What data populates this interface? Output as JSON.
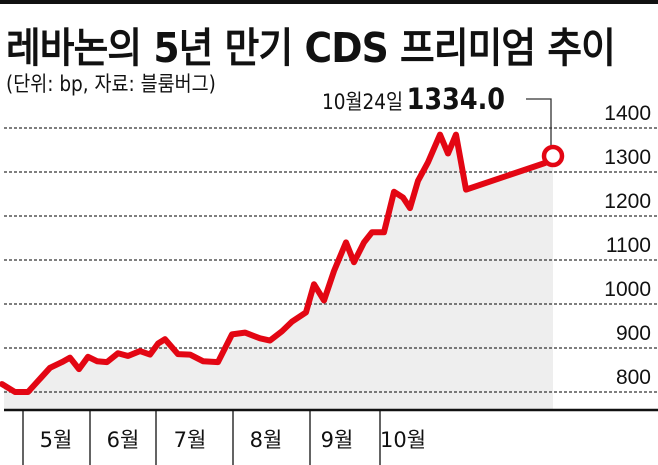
{
  "title": "레바논의 5년 만기 CDS 프리미엄 추이",
  "subtitle": "(단위: bp, 자료: 블룸버그)",
  "callout": {
    "date": "10월24일",
    "value": "1334.0"
  },
  "colors": {
    "line": "#e30613",
    "area": "#eeeeee",
    "grid": "#333333",
    "text": "#111111"
  },
  "chart_data": {
    "type": "line",
    "title": "레바논의 5년 만기 CDS 프리미엄 추이",
    "subtitle": "(단위: bp, 자료: 블룸버그)",
    "xlabel": "",
    "ylabel": "bp",
    "ylim": [
      750,
      1400
    ],
    "yticks": [
      800,
      900,
      1000,
      1100,
      1200,
      1300,
      1400
    ],
    "xticks": [
      "5월",
      "6월",
      "7월",
      "8월",
      "9월",
      "10월"
    ],
    "grid": true,
    "area_fill": true,
    "annotation": {
      "label": "10월24일",
      "value": 1334.0
    },
    "series": [
      {
        "name": "CDS 프리미엄",
        "x": [
          "4월 말",
          "5월 초",
          "5월",
          "5월",
          "5월",
          "5월 중",
          "5월",
          "5월",
          "5월 말",
          "6월 초",
          "6월",
          "6월",
          "6월",
          "6월 중",
          "6월",
          "6월",
          "6월 말",
          "7월 초",
          "7월",
          "7월",
          "7월 중",
          "7월",
          "7월 말",
          "8월 초",
          "8월",
          "8월",
          "8월 중",
          "8월",
          "8월",
          "8월 말",
          "9월 초",
          "9월",
          "9월",
          "9월 중",
          "9월",
          "9월",
          "9월 말",
          "10월 초",
          "10월",
          "10월",
          "10월 중",
          "10월",
          "10월",
          "10월 20일",
          "10월 22일",
          "10월 24일"
        ],
        "values": [
          818,
          800,
          800,
          830,
          855,
          868,
          878,
          852,
          880,
          870,
          868,
          888,
          882,
          893,
          885,
          910,
          920,
          886,
          885,
          870,
          868,
          931,
          935,
          922,
          917,
          938,
          960,
          981,
          1045,
          1008,
          1075,
          1140,
          1095,
          1140,
          1163,
          1163,
          1255,
          1242,
          1218,
          1280,
          1322,
          1385,
          1342,
          1385,
          1260,
          1334
        ]
      }
    ]
  },
  "y_axis": [
    "1400",
    "1300",
    "1200",
    "1100",
    "1000",
    "900",
    "800"
  ],
  "x_axis": [
    "5월",
    "6월",
    "7월",
    "8월",
    "9월",
    "10월"
  ]
}
